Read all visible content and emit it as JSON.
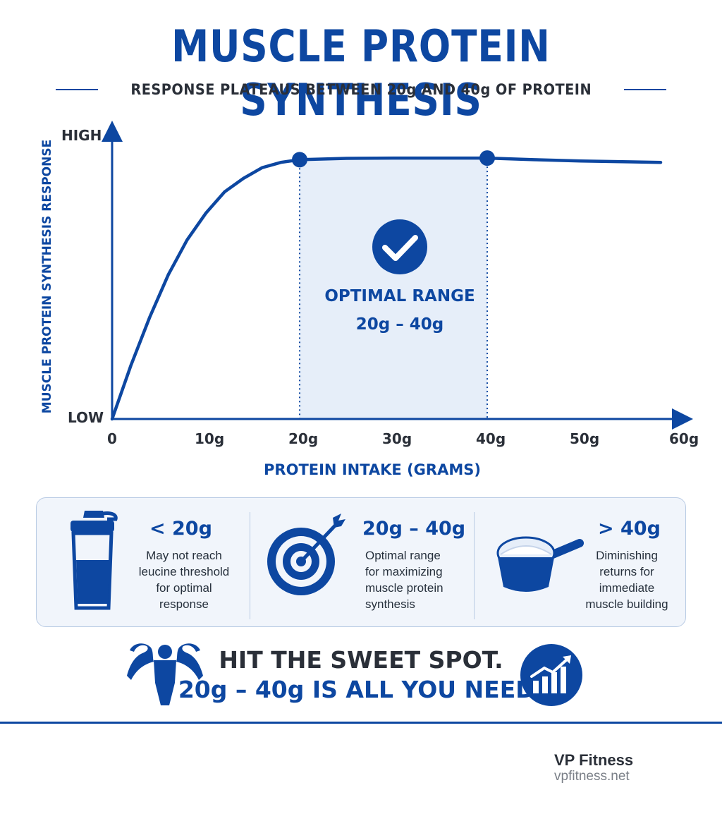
{
  "header": {
    "title": "MUSCLE PROTEIN SYNTHESIS",
    "subtitle": "RESPONSE PLATEAUS BETWEEN 20g AND 40g OF PROTEIN"
  },
  "chart_data": {
    "type": "line",
    "xlabel": "PROTEIN INTAKE (GRAMS)",
    "ylabel": "MUSCLE PROTEIN SYNTHESIS RESPONSE",
    "x_ticks": [
      "0",
      "10g",
      "20g",
      "30g",
      "40g",
      "50g",
      "60g"
    ],
    "y_ticks": [
      "LOW",
      "HIGH"
    ],
    "xlim": [
      0,
      60
    ],
    "ylim": [
      0,
      1
    ],
    "series": [
      {
        "x": [
          0,
          2,
          4,
          6,
          8,
          10,
          12,
          14,
          16,
          18,
          20,
          25,
          30,
          35,
          40,
          45,
          50,
          55,
          58.5
        ],
        "y": [
          0,
          0.2,
          0.38,
          0.54,
          0.67,
          0.77,
          0.85,
          0.9,
          0.94,
          0.96,
          0.97,
          0.975,
          0.976,
          0.976,
          0.976,
          0.97,
          0.965,
          0.962,
          0.96
        ]
      }
    ],
    "markers": [
      {
        "x": 20,
        "y": 0.97
      },
      {
        "x": 40,
        "y": 0.976
      }
    ],
    "highlight_range": [
      20,
      40
    ],
    "annotation": [
      "OPTIMAL RANGE",
      "20g – 40g"
    ],
    "colors": {
      "primary": "#0d47a1",
      "band": "#e6eef9"
    },
    "grid": false
  },
  "info_panel": [
    {
      "icon": "shaker-bottle-icon",
      "heading": "< 20g",
      "text": "May not reach\nleucine threshold\nfor optimal response"
    },
    {
      "icon": "target-icon",
      "heading": "20g – 40g",
      "text": "Optimal range\nfor maximizing\nmuscle protein\nsynthesis"
    },
    {
      "icon": "protein-scoop-icon",
      "heading": "> 40g",
      "text": "Diminishing\nreturns for\nimmediate\nmuscle building"
    }
  ],
  "cta": {
    "line1": "HIT THE SWEET SPOT.",
    "line2": "20g – 40g IS ALL YOU NEED."
  },
  "footer": {
    "brand": "VP Fitness",
    "site": "vpfitness.net"
  }
}
